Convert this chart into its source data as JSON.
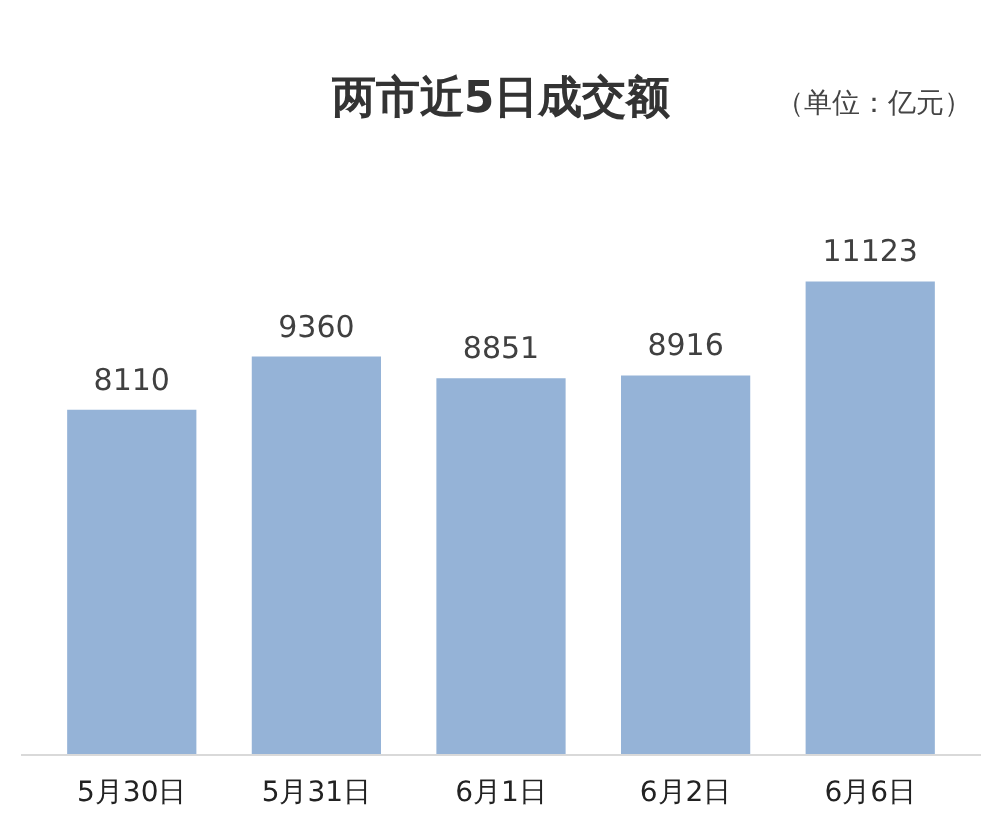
{
  "chart_data": {
    "type": "bar",
    "title": "两市近5日成交额",
    "annotations": [
      "（单位：亿元）"
    ],
    "categories": [
      "5月30日",
      "5月31日",
      "6月1日",
      "6月2日",
      "6月6日"
    ],
    "values": [
      8110,
      9360,
      8851,
      8916,
      11123
    ],
    "color": "#95b3d7",
    "data_labels": true,
    "grid": false
  }
}
